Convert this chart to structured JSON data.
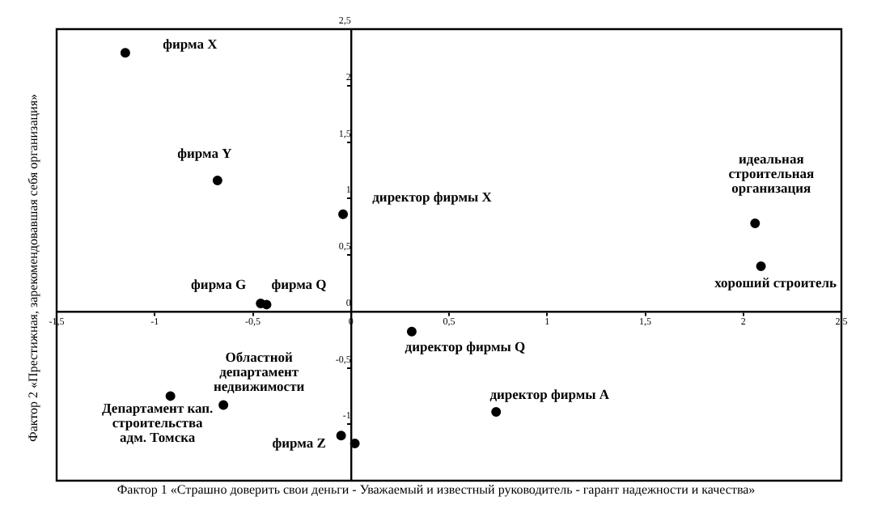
{
  "chart_data": {
    "type": "scatter",
    "xlabel": "Фактор 1 «Страшно доверить свои деньги - Уважаемый и известный руководитель - гарант надежности и качества»",
    "ylabel": "Фактор 2 «Престижная, зарекомендовавшая себя организация»",
    "x": [
      -1.15,
      -0.68,
      -0.04,
      -0.46,
      -0.43,
      2.06,
      2.09,
      0.31,
      0.74,
      -0.65,
      -0.92,
      -0.05,
      0.02
    ],
    "values": [
      2.29,
      1.16,
      0.86,
      0.07,
      0.06,
      0.78,
      0.4,
      -0.18,
      -0.89,
      -0.83,
      -0.75,
      -1.1,
      -1.17
    ],
    "color": "#000000",
    "marker": "circle",
    "xlim": [
      -1.5,
      2.5
    ],
    "ylim": [
      -1.5,
      2.5
    ],
    "xticks": [
      {
        "value": -1.5,
        "label": "-1,5"
      },
      -1,
      {
        "value": -0.5,
        "label": "-0,5"
      },
      0,
      {
        "value": 0.5,
        "label": "0,5"
      },
      1,
      {
        "value": 1.5,
        "label": "1,5"
      },
      2,
      {
        "value": 2.5,
        "label": "2,5"
      }
    ],
    "yticks": [
      {
        "value": -1,
        "label": "-1"
      },
      {
        "value": -0.5,
        "label": "-0,5"
      },
      0,
      {
        "value": 0.5,
        "label": "0,5"
      },
      1,
      {
        "value": 1.5,
        "label": "1,5"
      },
      2,
      {
        "value": 2.5,
        "label": "2,5"
      }
    ],
    "annotations": [
      {
        "text": "фирма X",
        "x": -1.15,
        "y": 2.29
      },
      {
        "text": "фирма Y",
        "x": -0.68,
        "y": 1.16
      },
      {
        "text": "директор фирмы X",
        "x": -0.04,
        "y": 0.86
      },
      {
        "text": "фирма G",
        "x": -0.46,
        "y": 0.07
      },
      {
        "text": "фирма Q",
        "x": -0.43,
        "y": 0.06
      },
      {
        "text": "идеальная\nстроительная\nорганизация",
        "x": 2.06,
        "y": 0.78
      },
      {
        "text": "хороший строитель",
        "x": 2.09,
        "y": 0.4
      },
      {
        "text": "директор фирмы Q",
        "x": 0.31,
        "y": -0.18
      },
      {
        "text": "директор фирмы A",
        "x": 0.74,
        "y": -0.89
      },
      {
        "text": "Областной\nдепартамент\nнедвижимости",
        "x": -0.65,
        "y": -0.83
      },
      {
        "text": "Департамент кап.\nстроительства\nадм. Томска",
        "x": -0.92,
        "y": -0.75
      },
      {
        "text": "фирма Z",
        "x": -0.05,
        "y": -1.1
      }
    ]
  }
}
